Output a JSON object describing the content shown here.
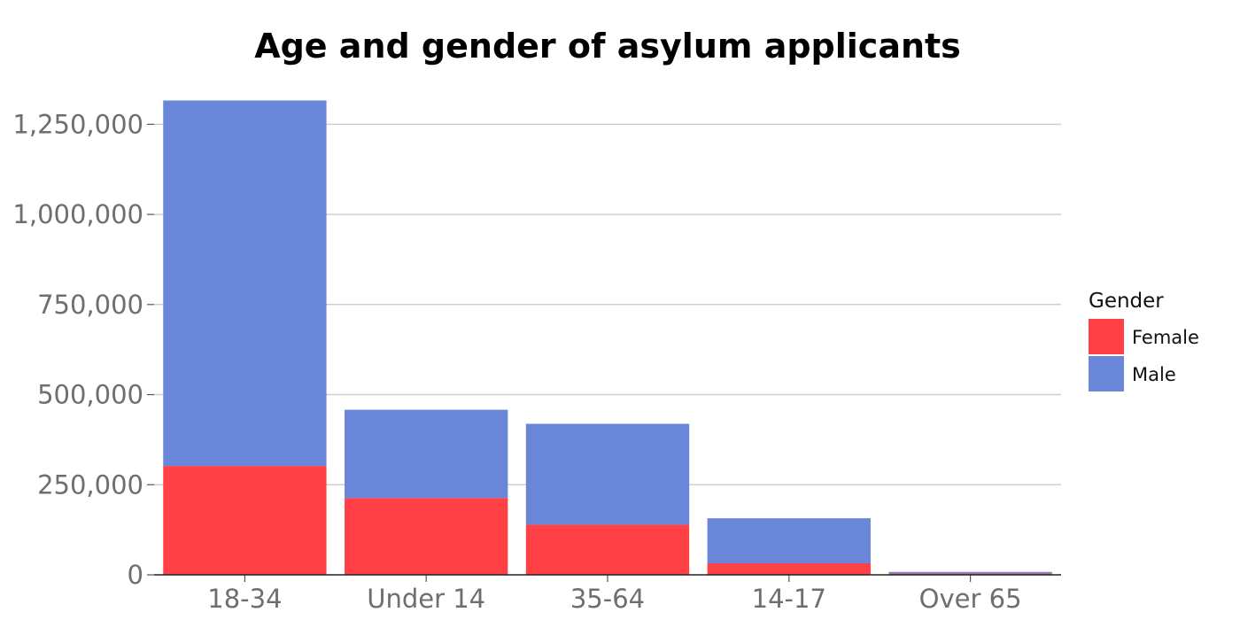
{
  "chart_data": {
    "type": "bar",
    "stacked": true,
    "title": "Age and gender of asylum applicants",
    "categories": [
      "18-34",
      "Under 14",
      "35-64",
      "14-17",
      "Over 65"
    ],
    "series": [
      {
        "name": "Female",
        "values": [
          302000,
          213000,
          139000,
          32000,
          4000
        ],
        "color": "#ff4045"
      },
      {
        "name": "Male",
        "values": [
          1014000,
          245000,
          280000,
          125000,
          4000
        ],
        "color": "#6a86d9"
      }
    ],
    "ylim": [
      0,
      1300000
    ],
    "yticks": [
      0,
      250000,
      500000,
      750000,
      1000000,
      1250000
    ],
    "ytick_labels": [
      "0",
      "250,000",
      "500,000",
      "750,000",
      "1,000,000",
      "1,250,000"
    ],
    "grid": true,
    "legend": {
      "title": "Gender",
      "position": "right"
    }
  }
}
